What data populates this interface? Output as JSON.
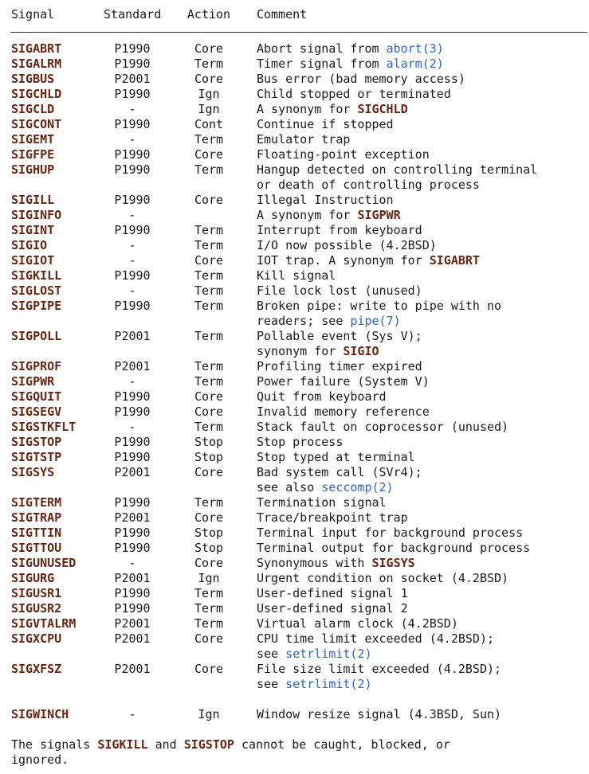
{
  "palette": {
    "background": "#ffffff",
    "text": "#1a1a1a",
    "signal_bold": "#652713",
    "link": "#3163c9",
    "rule": "#2b2b2b"
  },
  "table": {
    "headers": {
      "signal": "Signal",
      "standard": "Standard",
      "action": "Action",
      "comment": "Comment"
    },
    "rows": [
      {
        "signal": "SIGABRT",
        "standard": "P1990",
        "action": "Core",
        "comment": [
          [
            {
              "t": "Abort signal from "
            },
            {
              "t": "abort(3)",
              "s": "link"
            }
          ]
        ]
      },
      {
        "signal": "SIGALRM",
        "standard": "P1990",
        "action": "Term",
        "comment": [
          [
            {
              "t": "Timer signal from "
            },
            {
              "t": "alarm(2)",
              "s": "link"
            }
          ]
        ]
      },
      {
        "signal": "SIGBUS",
        "standard": "P2001",
        "action": "Core",
        "comment": [
          [
            {
              "t": "Bus error (bad memory access)"
            }
          ]
        ]
      },
      {
        "signal": "SIGCHLD",
        "standard": "P1990",
        "action": "Ign",
        "comment": [
          [
            {
              "t": "Child stopped or terminated"
            }
          ]
        ]
      },
      {
        "signal": "SIGCLD",
        "standard": "-",
        "action": "Ign",
        "comment": [
          [
            {
              "t": "A synonym for "
            },
            {
              "t": "SIGCHLD",
              "s": "bold"
            }
          ]
        ]
      },
      {
        "signal": "SIGCONT",
        "standard": "P1990",
        "action": "Cont",
        "comment": [
          [
            {
              "t": "Continue if stopped"
            }
          ]
        ]
      },
      {
        "signal": "SIGEMT",
        "standard": "-",
        "action": "Term",
        "comment": [
          [
            {
              "t": "Emulator trap"
            }
          ]
        ]
      },
      {
        "signal": "SIGFPE",
        "standard": "P1990",
        "action": "Core",
        "comment": [
          [
            {
              "t": "Floating-point exception"
            }
          ]
        ]
      },
      {
        "signal": "SIGHUP",
        "standard": "P1990",
        "action": "Term",
        "comment": [
          [
            {
              "t": "Hangup detected on controlling terminal"
            }
          ],
          [
            {
              "t": "or death of controlling process"
            }
          ]
        ]
      },
      {
        "signal": "SIGILL",
        "standard": "P1990",
        "action": "Core",
        "comment": [
          [
            {
              "t": "Illegal Instruction"
            }
          ]
        ]
      },
      {
        "signal": "SIGINFO",
        "standard": "-",
        "action": "",
        "comment": [
          [
            {
              "t": "A synonym for "
            },
            {
              "t": "SIGPWR",
              "s": "bold"
            }
          ]
        ]
      },
      {
        "signal": "SIGINT",
        "standard": "P1990",
        "action": "Term",
        "comment": [
          [
            {
              "t": "Interrupt from keyboard"
            }
          ]
        ]
      },
      {
        "signal": "SIGIO",
        "standard": "-",
        "action": "Term",
        "comment": [
          [
            {
              "t": "I/O now possible (4.2BSD)"
            }
          ]
        ]
      },
      {
        "signal": "SIGIOT",
        "standard": "-",
        "action": "Core",
        "comment": [
          [
            {
              "t": "IOT trap. A synonym for "
            },
            {
              "t": "SIGABRT",
              "s": "bold"
            }
          ]
        ]
      },
      {
        "signal": "SIGKILL",
        "standard": "P1990",
        "action": "Term",
        "comment": [
          [
            {
              "t": "Kill signal"
            }
          ]
        ]
      },
      {
        "signal": "SIGLOST",
        "standard": "-",
        "action": "Term",
        "comment": [
          [
            {
              "t": "File lock lost (unused)"
            }
          ]
        ]
      },
      {
        "signal": "SIGPIPE",
        "standard": "P1990",
        "action": "Term",
        "comment": [
          [
            {
              "t": "Broken pipe: write to pipe with no"
            }
          ],
          [
            {
              "t": "readers; see "
            },
            {
              "t": "pipe(7)",
              "s": "link"
            }
          ]
        ]
      },
      {
        "signal": "SIGPOLL",
        "standard": "P2001",
        "action": "Term",
        "comment": [
          [
            {
              "t": "Pollable event (Sys V);"
            }
          ],
          [
            {
              "t": "synonym for "
            },
            {
              "t": "SIGIO",
              "s": "bold"
            }
          ]
        ]
      },
      {
        "signal": "SIGPROF",
        "standard": "P2001",
        "action": "Term",
        "comment": [
          [
            {
              "t": "Profiling timer expired"
            }
          ]
        ]
      },
      {
        "signal": "SIGPWR",
        "standard": "-",
        "action": "Term",
        "comment": [
          [
            {
              "t": "Power failure (System V)"
            }
          ]
        ]
      },
      {
        "signal": "SIGQUIT",
        "standard": "P1990",
        "action": "Core",
        "comment": [
          [
            {
              "t": "Quit from keyboard"
            }
          ]
        ]
      },
      {
        "signal": "SIGSEGV",
        "standard": "P1990",
        "action": "Core",
        "comment": [
          [
            {
              "t": "Invalid memory reference"
            }
          ]
        ]
      },
      {
        "signal": "SIGSTKFLT",
        "standard": "-",
        "action": "Term",
        "comment": [
          [
            {
              "t": "Stack fault on coprocessor (unused)"
            }
          ]
        ]
      },
      {
        "signal": "SIGSTOP",
        "standard": "P1990",
        "action": "Stop",
        "comment": [
          [
            {
              "t": "Stop process"
            }
          ]
        ]
      },
      {
        "signal": "SIGTSTP",
        "standard": "P1990",
        "action": "Stop",
        "comment": [
          [
            {
              "t": "Stop typed at terminal"
            }
          ]
        ]
      },
      {
        "signal": "SIGSYS",
        "standard": "P2001",
        "action": "Core",
        "comment": [
          [
            {
              "t": "Bad system call (SVr4);"
            }
          ],
          [
            {
              "t": "see also "
            },
            {
              "t": "seccomp(2)",
              "s": "link"
            }
          ]
        ]
      },
      {
        "signal": "SIGTERM",
        "standard": "P1990",
        "action": "Term",
        "comment": [
          [
            {
              "t": "Termination signal"
            }
          ]
        ]
      },
      {
        "signal": "SIGTRAP",
        "standard": "P2001",
        "action": "Core",
        "comment": [
          [
            {
              "t": "Trace/breakpoint trap"
            }
          ]
        ]
      },
      {
        "signal": "SIGTTIN",
        "standard": "P1990",
        "action": "Stop",
        "comment": [
          [
            {
              "t": "Terminal input for background process"
            }
          ]
        ]
      },
      {
        "signal": "SIGTTOU",
        "standard": "P1990",
        "action": "Stop",
        "comment": [
          [
            {
              "t": "Terminal output for background process"
            }
          ]
        ]
      },
      {
        "signal": "SIGUNUSED",
        "standard": "-",
        "action": "Core",
        "comment": [
          [
            {
              "t": "Synonymous with "
            },
            {
              "t": "SIGSYS",
              "s": "bold"
            }
          ]
        ]
      },
      {
        "signal": "SIGURG",
        "standard": "P2001",
        "action": "Ign",
        "comment": [
          [
            {
              "t": "Urgent condition on socket (4.2BSD)"
            }
          ]
        ]
      },
      {
        "signal": "SIGUSR1",
        "standard": "P1990",
        "action": "Term",
        "comment": [
          [
            {
              "t": "User-defined signal 1"
            }
          ]
        ]
      },
      {
        "signal": "SIGUSR2",
        "standard": "P1990",
        "action": "Term",
        "comment": [
          [
            {
              "t": "User-defined signal 2"
            }
          ]
        ]
      },
      {
        "signal": "SIGVTALRM",
        "standard": "P2001",
        "action": "Term",
        "comment": [
          [
            {
              "t": "Virtual alarm clock (4.2BSD)"
            }
          ]
        ]
      },
      {
        "signal": "SIGXCPU",
        "standard": "P2001",
        "action": "Core",
        "comment": [
          [
            {
              "t": "CPU time limit exceeded (4.2BSD);"
            }
          ],
          [
            {
              "t": "see "
            },
            {
              "t": "setrlimit(2)",
              "s": "link"
            }
          ]
        ]
      },
      {
        "signal": "SIGXFSZ",
        "standard": "P2001",
        "action": "Core",
        "comment": [
          [
            {
              "t": "File size limit exceeded (4.2BSD);"
            }
          ],
          [
            {
              "t": "see "
            },
            {
              "t": "setrlimit(2)",
              "s": "link"
            }
          ]
        ]
      },
      {
        "signal": "SIGWINCH",
        "standard": "-",
        "action": "Ign",
        "comment": [
          [
            {
              "t": "Window resize signal (4.3BSD, Sun)"
            }
          ]
        ],
        "gap_above": true
      }
    ]
  },
  "footer": {
    "lines": [
      [
        {
          "t": "The signals "
        },
        {
          "t": "SIGKILL",
          "s": "bold"
        },
        {
          "t": " and "
        },
        {
          "t": "SIGSTOP",
          "s": "bold"
        },
        {
          "t": " cannot be caught, blocked, or"
        }
      ],
      [
        {
          "t": "ignored."
        }
      ]
    ]
  }
}
